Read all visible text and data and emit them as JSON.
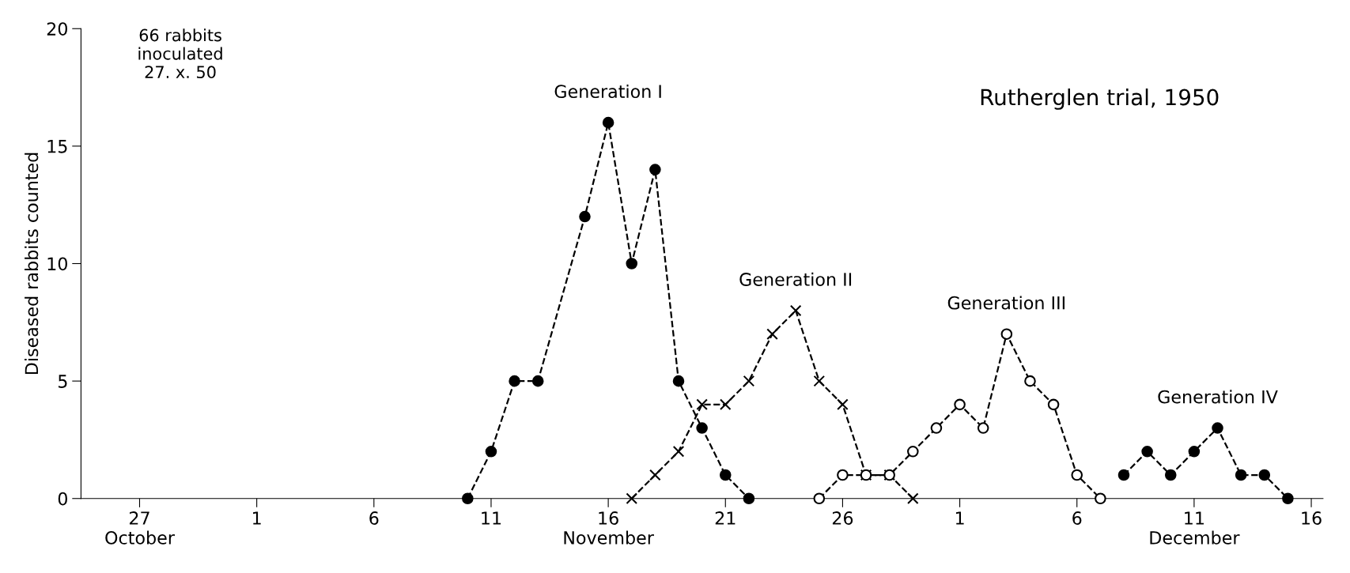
{
  "chart_data": {
    "type": "line",
    "ylabel": "Diseased rabbits counted",
    "annotations": [
      "66 rabbits\ninoculated\n27. x. 50",
      "Rutherglen trial, 1950"
    ],
    "series": [
      {
        "name": "Generation I",
        "color": "#000000",
        "marker": "circle",
        "x": [
          "1950-11-10",
          "1950-11-11",
          "1950-11-12",
          "1950-11-13",
          "1950-11-15",
          "1950-11-16",
          "1950-11-17",
          "1950-11-18",
          "1950-11-19",
          "1950-11-20",
          "1950-11-21",
          "1950-11-22"
        ],
        "values": [
          0,
          2,
          5,
          5,
          12,
          16,
          10,
          14,
          5,
          3,
          1,
          0
        ]
      },
      {
        "name": "Generation II",
        "color": "#000000",
        "marker": "cross",
        "x": [
          "1950-11-17",
          "1950-11-18",
          "1950-11-19",
          "1950-11-20",
          "1950-11-21",
          "1950-11-22",
          "1950-11-23",
          "1950-11-24",
          "1950-11-25",
          "1950-11-26",
          "1950-11-27",
          "1950-11-28",
          "1950-11-29"
        ],
        "values": [
          0,
          1,
          2,
          4,
          4,
          5,
          7,
          8,
          5,
          4,
          1,
          1,
          0
        ]
      },
      {
        "name": "Generation III",
        "color": "#000000",
        "marker": "open circle",
        "x": [
          "1950-11-25",
          "1950-11-26",
          "1950-11-27",
          "1950-11-28",
          "1950-11-29",
          "1950-11-30",
          "1950-12-01",
          "1950-12-02",
          "1950-12-03",
          "1950-12-04",
          "1950-12-05",
          "1950-12-06",
          "1950-12-07"
        ],
        "values": [
          0,
          1,
          1,
          1,
          2,
          3,
          4,
          3,
          7,
          5,
          4,
          1,
          0
        ]
      },
      {
        "name": "Generation IV",
        "color": "#000000",
        "marker": "circle",
        "x": [
          "1950-12-08",
          "1950-12-09",
          "1950-12-10",
          "1950-12-11",
          "1950-12-12",
          "1950-12-13",
          "1950-12-14",
          "1950-12-15"
        ],
        "values": [
          1,
          2,
          1,
          2,
          3,
          1,
          1,
          0
        ]
      }
    ],
    "line_style": "dashed",
    "grid": false,
    "legend": false,
    "xlim": [
      "1950-10-24T12:00",
      "1950-12-16T12:00"
    ],
    "xticks": [
      {
        "value": "1950-10-27",
        "label": "27\nOctober"
      },
      {
        "value": "1950-11-01",
        "label": "1"
      },
      {
        "value": "1950-11-06",
        "label": "6"
      },
      {
        "value": "1950-11-11",
        "label": "11"
      },
      {
        "value": "1950-11-16",
        "label": "16\nNovember"
      },
      {
        "value": "1950-11-21",
        "label": "21"
      },
      {
        "value": "1950-11-26",
        "label": "26"
      },
      {
        "value": "1950-12-01",
        "label": "1"
      },
      {
        "value": "1950-12-06",
        "label": "6"
      },
      {
        "value": "1950-12-11",
        "label": "11\nDecember"
      },
      {
        "value": "1950-12-16",
        "label": "16"
      }
    ],
    "ylim": [
      0,
      20
    ],
    "yticks": [
      0,
      5,
      10,
      15,
      20
    ]
  }
}
